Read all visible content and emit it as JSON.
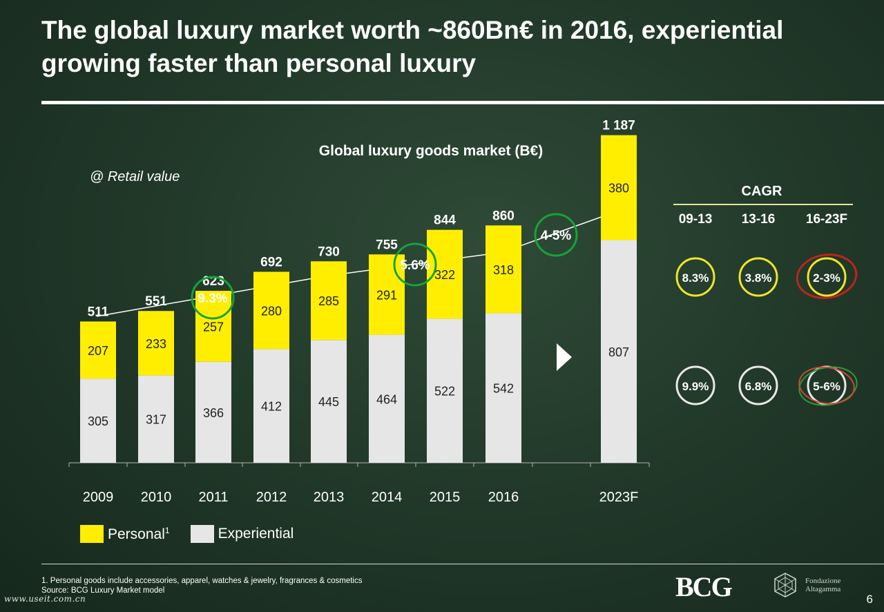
{
  "title": "The global luxury market worth ~860Bn€ in 2016, experiential growing faster than personal luxury",
  "chart_data": {
    "type": "bar",
    "stacked": true,
    "title": "Global luxury goods market (B€)",
    "subtitle": "@ Retail value",
    "categories": [
      "2009",
      "2010",
      "2011",
      "2012",
      "2013",
      "2014",
      "2015",
      "2016",
      "2023F"
    ],
    "totals": [
      "511",
      "551",
      "623",
      "692",
      "730",
      "755",
      "844",
      "860",
      "1 187"
    ],
    "series": [
      {
        "name": "Experiential",
        "values": [
          305,
          317,
          366,
          412,
          445,
          464,
          522,
          542,
          807
        ],
        "color": "#e6e6e6"
      },
      {
        "name": "Personal",
        "values": [
          207,
          233,
          257,
          280,
          285,
          291,
          322,
          318,
          380
        ],
        "color": "#ffee00"
      }
    ],
    "growth_labels": [
      "9.3%",
      "5.6%",
      "4-5%"
    ]
  },
  "legend": {
    "personal_label": "Personal",
    "personal_sup": "1",
    "experiential_label": "Experiential"
  },
  "cagr": {
    "title": "CAGR",
    "periods": [
      "09-13",
      "13-16",
      "16-23F"
    ],
    "personal": [
      "8.3%",
      "3.8%",
      "2-3%"
    ],
    "experiential": [
      "9.9%",
      "6.8%",
      "5-6%"
    ]
  },
  "footnote": {
    "line1": "1. Personal goods include accessories, apparel, watches & jewelry, fragrances & cosmetics",
    "line2": "Source: BCG Luxury Market model"
  },
  "logos": {
    "bcg": "BCG",
    "fondazione_line1": "Fondazione",
    "fondazione_line2": "Altagamma"
  },
  "watermark": "www.useit.com.cn",
  "page_number": "6",
  "colors": {
    "personal": "#ffee00",
    "experiential": "#e6e6e6",
    "growth_circle": "#17a339",
    "background": "#223a2a"
  }
}
